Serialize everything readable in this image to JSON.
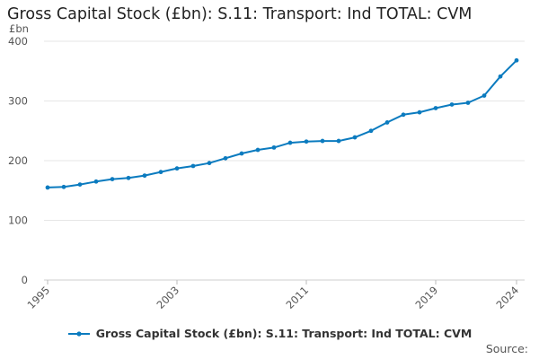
{
  "chart_data": {
    "type": "line",
    "title": "Gross Capital Stock (£bn): S.11: Transport: Ind TOTAL: CVM",
    "unit_label": "£bn",
    "x_tick_labels": [
      "1995",
      "2003",
      "2011",
      "2019",
      "2024"
    ],
    "y_tick_labels": [
      "0",
      "100",
      "200",
      "300",
      "400"
    ],
    "xlim": [
      1995,
      2024
    ],
    "ylim": [
      0,
      400
    ],
    "grid": "horizontal",
    "legend_position": "bottom",
    "source_label": "Source:",
    "series": [
      {
        "name": "Gross Capital Stock (£bn): S.11: Transport: Ind TOTAL: CVM",
        "color": "#0b7bbf",
        "x": [
          1995,
          1996,
          1997,
          1998,
          1999,
          2000,
          2001,
          2002,
          2003,
          2004,
          2005,
          2006,
          2007,
          2008,
          2009,
          2010,
          2011,
          2012,
          2013,
          2014,
          2015,
          2016,
          2017,
          2018,
          2019,
          2020,
          2021,
          2022,
          2023,
          2024
        ],
        "values": [
          155,
          156,
          160,
          165,
          169,
          171,
          175,
          181,
          187,
          191,
          196,
          204,
          212,
          218,
          222,
          230,
          232,
          233,
          233,
          239,
          250,
          264,
          277,
          281,
          288,
          294,
          297,
          309,
          341,
          368
        ]
      }
    ]
  }
}
